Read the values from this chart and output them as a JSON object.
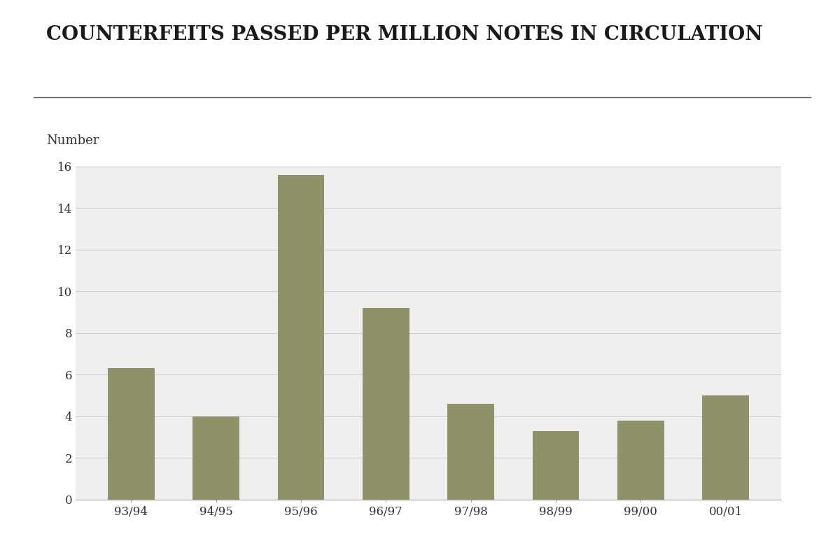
{
  "title": "COUNTERFEITS PASSED PER MILLION NOTES IN CIRCULATION",
  "ylabel": "Number",
  "categories": [
    "93/94",
    "94/95",
    "95/96",
    "96/97",
    "97/98",
    "98/99",
    "99/00",
    "00/01"
  ],
  "values": [
    6.3,
    4.0,
    15.6,
    9.2,
    4.6,
    3.3,
    3.8,
    5.0
  ],
  "bar_color": "#8f9268",
  "background_color": "#ffffff",
  "plot_bg_color": "#efefef",
  "ylim": [
    0,
    16
  ],
  "yticks": [
    0,
    2,
    4,
    6,
    8,
    10,
    12,
    14,
    16
  ],
  "grid_color": "#d0d0d0",
  "title_fontsize": 20,
  "number_label_fontsize": 13,
  "tick_fontsize": 12,
  "bar_width": 0.55,
  "title_color": "#1a1a1a",
  "separator_color": "#555555",
  "tick_color": "#333333"
}
